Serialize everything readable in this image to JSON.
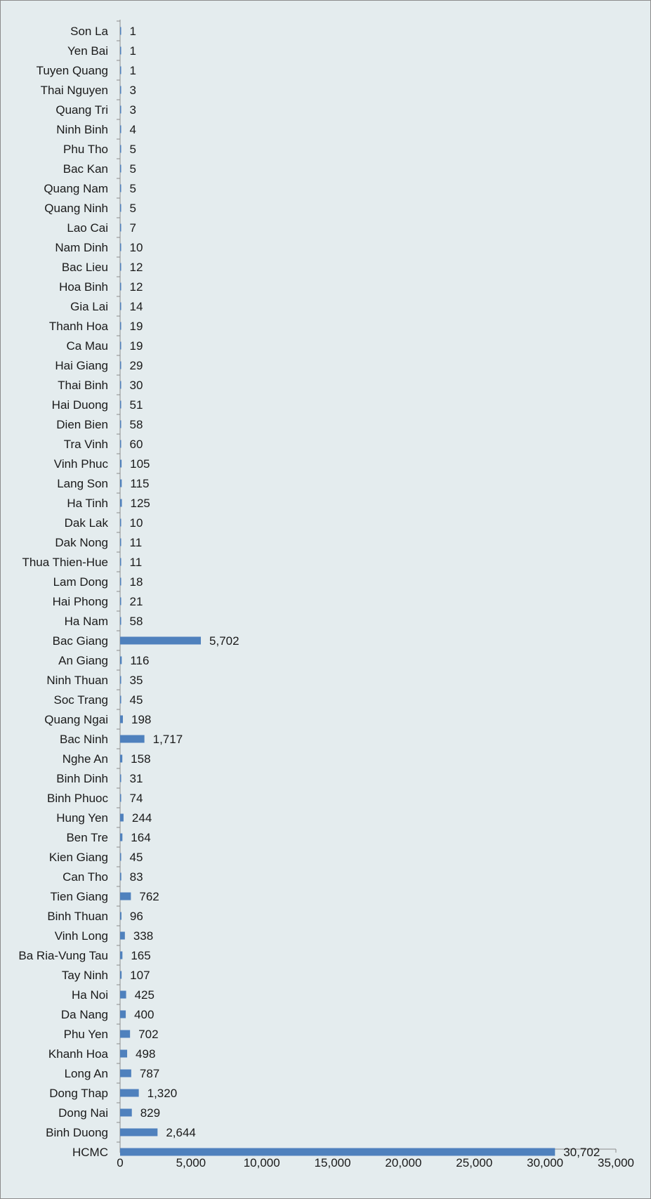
{
  "chart_data": {
    "type": "bar",
    "orientation": "horizontal",
    "title": "",
    "xlabel": "",
    "ylabel": "",
    "xlim": [
      0,
      35000
    ],
    "x_ticks": [
      0,
      5000,
      10000,
      15000,
      20000,
      25000,
      30000,
      35000
    ],
    "x_tick_labels": [
      "0",
      "5,000",
      "10,000",
      "15,000",
      "20,000",
      "25,000",
      "30,000",
      "35,000"
    ],
    "grid": false,
    "legend": "none",
    "bar_color": "#4f81bd",
    "background_color": "#e4ecee",
    "categories": [
      "Son La",
      "Yen Bai",
      "Tuyen Quang",
      "Thai Nguyen",
      "Quang Tri",
      "Ninh Binh",
      "Phu Tho",
      "Bac Kan",
      "Quang Nam",
      "Quang Ninh",
      "Lao Cai",
      "Nam Dinh",
      "Bac Lieu",
      "Hoa Binh",
      "Gia Lai",
      "Thanh Hoa",
      "Ca Mau",
      "Hai Giang",
      "Thai Binh",
      "Hai Duong",
      "Dien Bien",
      "Tra Vinh",
      "Vinh Phuc",
      "Lang Son",
      "Ha Tinh",
      "Dak Lak",
      "Dak Nong",
      "Thua Thien-Hue",
      "Lam Dong",
      "Hai Phong",
      "Ha Nam",
      "Bac Giang",
      "An Giang",
      "Ninh Thuan",
      "Soc Trang",
      "Quang Ngai",
      "Bac Ninh",
      "Nghe An",
      "Binh Dinh",
      "Binh Phuoc",
      "Hung Yen",
      "Ben Tre",
      "Kien Giang",
      "Can Tho",
      "Tien Giang",
      "Binh Thuan",
      "Vinh Long",
      "Ba Ria-Vung Tau",
      "Tay Ninh",
      "Ha Noi",
      "Da Nang",
      "Phu Yen",
      "Khanh Hoa",
      "Long An",
      "Dong Thap",
      "Dong Nai",
      "Binh Duong",
      "HCMC"
    ],
    "values": [
      1,
      1,
      1,
      3,
      3,
      4,
      5,
      5,
      5,
      5,
      7,
      10,
      12,
      12,
      14,
      19,
      19,
      29,
      30,
      51,
      58,
      60,
      105,
      115,
      125,
      10,
      11,
      11,
      18,
      21,
      58,
      5702,
      116,
      35,
      45,
      198,
      1717,
      158,
      31,
      74,
      244,
      164,
      45,
      83,
      762,
      96,
      338,
      165,
      107,
      425,
      400,
      702,
      498,
      787,
      1320,
      829,
      2644,
      30702
    ],
    "value_labels": [
      "1",
      "1",
      "1",
      "3",
      "3",
      "4",
      "5",
      "5",
      "5",
      "5",
      "7",
      "10",
      "12",
      "12",
      "14",
      "19",
      "19",
      "29",
      "30",
      "51",
      "58",
      "60",
      "105",
      "115",
      "125",
      "10",
      "11",
      "11",
      "18",
      "21",
      "58",
      "5,702",
      "116",
      "35",
      "45",
      "198",
      "1,717",
      "158",
      "31",
      "74",
      "244",
      "164",
      "45",
      "83",
      "762",
      "96",
      "338",
      "165",
      "107",
      "425",
      "400",
      "702",
      "498",
      "787",
      "1,320",
      "829",
      "2,644",
      "30,702"
    ]
  }
}
